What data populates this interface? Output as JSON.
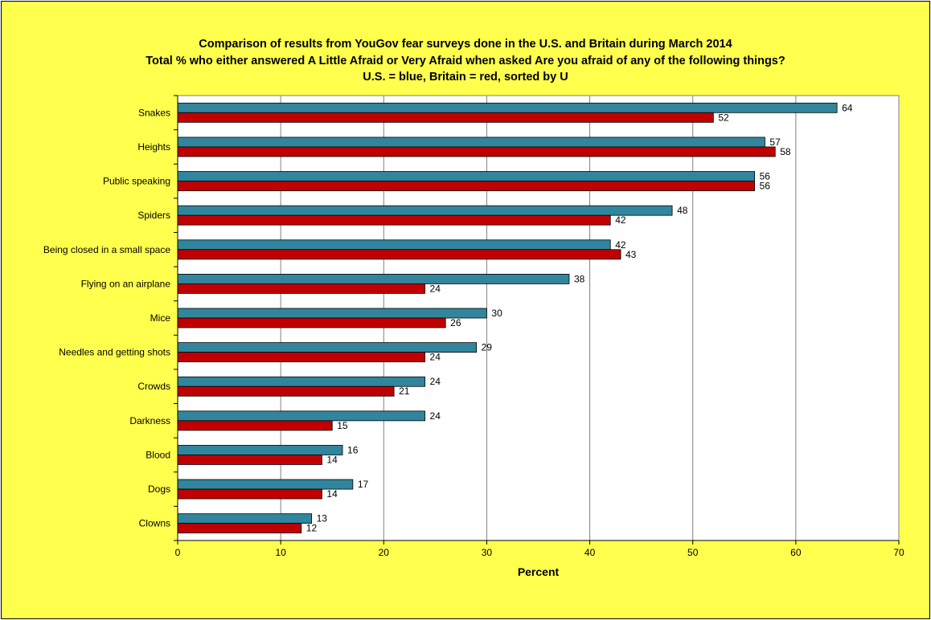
{
  "chart_data": {
    "type": "bar",
    "orientation": "horizontal",
    "title": [
      "Comparison of results from YouGov fear surveys done in the U.S. and Britain  during March 2014",
      "Total % who either answered A Little Afraid or Very Afraid when asked Are you afraid of any of the following things?",
      "U.S. = blue, Britain = red, sorted by U"
    ],
    "xlabel": "Percent",
    "ylabel": "",
    "xlim": [
      0,
      70
    ],
    "xticks": [
      0,
      10,
      20,
      30,
      40,
      50,
      60,
      70
    ],
    "grid": true,
    "legend": "none",
    "categories": [
      "Snakes",
      "Heights",
      "Public speaking",
      "Spiders",
      "Being closed in a small space",
      "Flying on an airplane",
      "Mice",
      "Needles and getting shots",
      "Crowds",
      "Darkness",
      "Blood",
      "Dogs",
      "Clowns"
    ],
    "series": [
      {
        "color": "#31859c",
        "values": [
          64,
          57,
          56,
          48,
          42,
          38,
          30,
          29,
          24,
          24,
          16,
          17,
          13
        ]
      },
      {
        "color": "#c00000",
        "values": [
          52,
          58,
          56,
          42,
          43,
          24,
          26,
          24,
          21,
          15,
          14,
          14,
          12
        ]
      }
    ]
  },
  "colors": {
    "background": "#ffff4d",
    "plot_area": "#ffffff",
    "gridline": "#808080"
  }
}
